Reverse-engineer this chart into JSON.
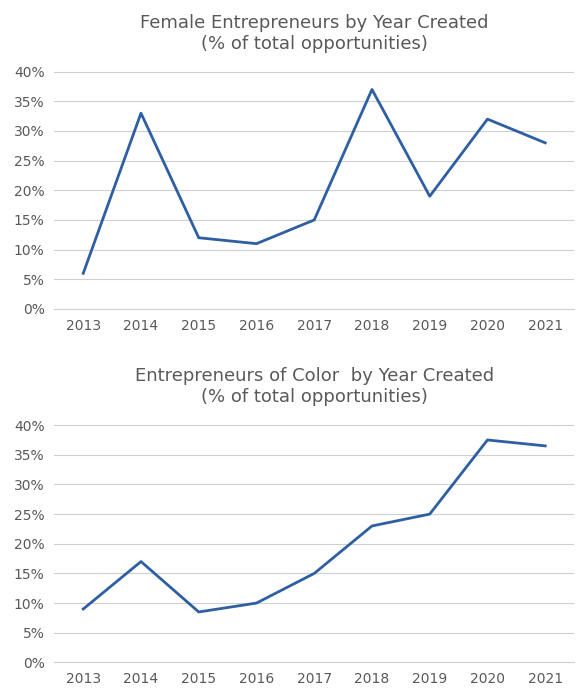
{
  "chart1": {
    "title_line1": "Female Entrepreneurs by Year Created",
    "title_line2": "(% of total opportunities)",
    "years": [
      2013,
      2014,
      2015,
      2016,
      2017,
      2018,
      2019,
      2020,
      2021
    ],
    "values": [
      0.06,
      0.33,
      0.12,
      0.11,
      0.15,
      0.37,
      0.19,
      0.32,
      0.28
    ],
    "ylim": [
      0,
      0.42
    ],
    "yticks": [
      0.0,
      0.05,
      0.1,
      0.15,
      0.2,
      0.25,
      0.3,
      0.35,
      0.4
    ],
    "line_color": "#2E5FA3",
    "line_width": 2.0
  },
  "chart2": {
    "title_line1": "Entrepreneurs of Color  by Year Created",
    "title_line2": "(% of total opportunities)",
    "years": [
      2013,
      2014,
      2015,
      2016,
      2017,
      2018,
      2019,
      2020,
      2021
    ],
    "values": [
      0.09,
      0.17,
      0.085,
      0.1,
      0.15,
      0.23,
      0.25,
      0.375,
      0.365
    ],
    "ylim": [
      0,
      0.42
    ],
    "yticks": [
      0.0,
      0.05,
      0.1,
      0.15,
      0.2,
      0.25,
      0.3,
      0.35,
      0.4
    ],
    "line_color": "#2E5FA3",
    "line_width": 2.0
  },
  "title_fontsize": 13,
  "tick_fontsize": 10,
  "title_color": "#595959",
  "tick_color": "#595959",
  "background_color": "#ffffff",
  "grid_color": "#d0d0d0",
  "spine_color": "#d0d0d0"
}
